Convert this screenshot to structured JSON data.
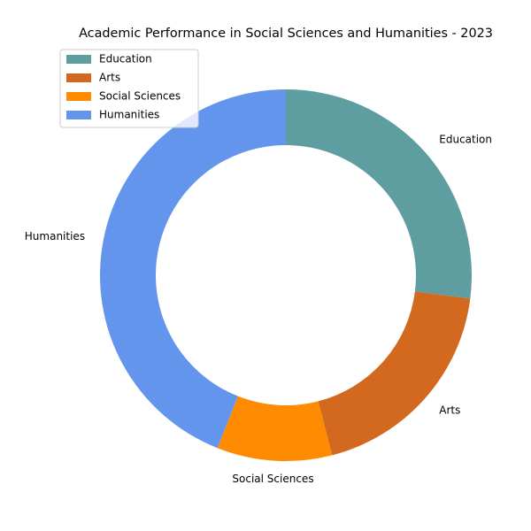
{
  "chart_data": {
    "type": "pie",
    "variant": "donut",
    "title": "Academic Performance in Social Sciences and Humanities - 2023",
    "categories": [
      "Education",
      "Arts",
      "Social Sciences",
      "Humanities"
    ],
    "values": [
      27,
      19,
      10,
      44
    ],
    "colors": [
      "#5f9ea0",
      "#d2691e",
      "#ff8c00",
      "#6495ed"
    ],
    "start_angle_deg": 90,
    "direction": "clockwise",
    "legend": {
      "position": "upper-left",
      "entries": [
        "Education",
        "Arts",
        "Social Sciences",
        "Humanities"
      ]
    }
  }
}
